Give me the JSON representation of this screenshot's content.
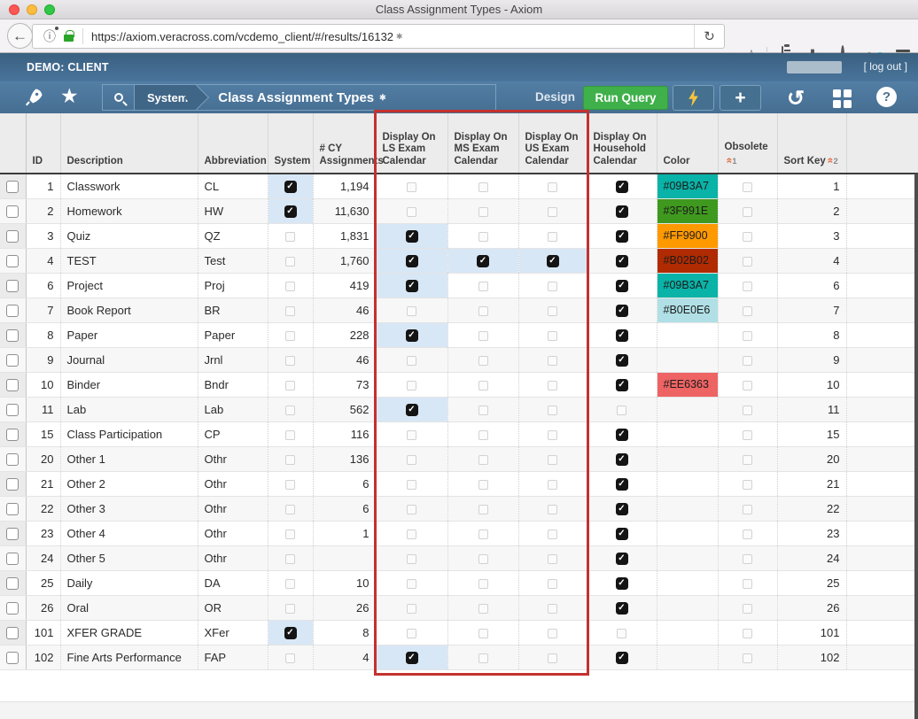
{
  "browser": {
    "window_title": "Class Assignment Types - Axiom",
    "url": "https://axiom.veracross.com/vcdemo_client/#/results/16132",
    "url_modified_marker": "✱"
  },
  "app_header": {
    "client_label": "DEMO: CLIENT",
    "logout_label": "[ log out ]",
    "breadcrumb_module": "System",
    "page_title": "Class Assignment Types",
    "title_modified_marker": "✱",
    "design_label": "Design",
    "run_query_label": "Run Query"
  },
  "colors": {
    "header_blue": "#47708f",
    "run_query_green": "#3fb04a",
    "annotation_red": "#c4312e",
    "checked_cell_highlight": "#d8e7f6",
    "bolt_yellow": "#f6c340"
  },
  "table": {
    "columns": [
      {
        "key": "id",
        "label": "ID"
      },
      {
        "key": "description",
        "label": "Description"
      },
      {
        "key": "abbreviation",
        "label": "Abbreviation"
      },
      {
        "key": "system",
        "label": "System",
        "type": "cb"
      },
      {
        "key": "cy",
        "label": "# CY Assignments"
      },
      {
        "key": "ls",
        "label": "Display On LS Exam Calendar",
        "type": "cb"
      },
      {
        "key": "ms",
        "label": "Display On MS Exam Calendar",
        "type": "cb"
      },
      {
        "key": "us",
        "label": "Display On US Exam Calendar",
        "type": "cb"
      },
      {
        "key": "household",
        "label": "Display On Household Calendar",
        "type": "cb"
      },
      {
        "key": "color",
        "label": "Color"
      },
      {
        "key": "obsolete",
        "label": "Obsolete",
        "type": "cb",
        "sort_badge": "1"
      },
      {
        "key": "sort",
        "label": "Sort Key",
        "sort_badge": "2"
      }
    ],
    "checkbox_legend": {
      "CH": "checked-highlighted",
      "C": "checked",
      "U": "unchecked"
    },
    "rows": [
      {
        "id": "1",
        "description": "Classwork",
        "abbreviation": "CL",
        "system": "CH",
        "cy": "1,194",
        "ls": "U",
        "ms": "U",
        "us": "U",
        "household": "C",
        "color": "#09B3A7",
        "obsolete": "U",
        "sort": "1"
      },
      {
        "id": "2",
        "description": "Homework",
        "abbreviation": "HW",
        "system": "CH",
        "cy": "11,630",
        "ls": "U",
        "ms": "U",
        "us": "U",
        "household": "C",
        "color": "#3F991E",
        "obsolete": "U",
        "sort": "2"
      },
      {
        "id": "3",
        "description": "Quiz",
        "abbreviation": "QZ",
        "system": "U",
        "cy": "1,831",
        "ls": "CH",
        "ms": "U",
        "us": "U",
        "household": "C",
        "color": "#FF9900",
        "obsolete": "U",
        "sort": "3"
      },
      {
        "id": "4",
        "description": "TEST",
        "abbreviation": "Test",
        "system": "U",
        "cy": "1,760",
        "ls": "CH",
        "ms": "CH",
        "us": "CH",
        "household": "C",
        "color": "#B02B02",
        "obsolete": "U",
        "sort": "4"
      },
      {
        "id": "6",
        "description": "Project",
        "abbreviation": "Proj",
        "system": "U",
        "cy": "419",
        "ls": "CH",
        "ms": "U",
        "us": "U",
        "household": "C",
        "color": "#09B3A7",
        "obsolete": "U",
        "sort": "6"
      },
      {
        "id": "7",
        "description": "Book Report",
        "abbreviation": "BR",
        "system": "U",
        "cy": "46",
        "ls": "U",
        "ms": "U",
        "us": "U",
        "household": "C",
        "color": "#B0E0E6",
        "obsolete": "U",
        "sort": "7"
      },
      {
        "id": "8",
        "description": "Paper",
        "abbreviation": "Paper",
        "system": "U",
        "cy": "228",
        "ls": "CH",
        "ms": "U",
        "us": "U",
        "household": "C",
        "color": null,
        "obsolete": "U",
        "sort": "8"
      },
      {
        "id": "9",
        "description": "Journal",
        "abbreviation": "Jrnl",
        "system": "U",
        "cy": "46",
        "ls": "U",
        "ms": "U",
        "us": "U",
        "household": "C",
        "color": null,
        "obsolete": "U",
        "sort": "9"
      },
      {
        "id": "10",
        "description": "Binder",
        "abbreviation": "Bndr",
        "system": "U",
        "cy": "73",
        "ls": "U",
        "ms": "U",
        "us": "U",
        "household": "C",
        "color": "#EE6363",
        "obsolete": "U",
        "sort": "10"
      },
      {
        "id": "11",
        "description": "Lab",
        "abbreviation": "Lab",
        "system": "U",
        "cy": "562",
        "ls": "CH",
        "ms": "U",
        "us": "U",
        "household": "U",
        "color": null,
        "obsolete": "U",
        "sort": "11"
      },
      {
        "id": "15",
        "description": "Class Participation",
        "abbreviation": "CP",
        "system": "U",
        "cy": "116",
        "ls": "U",
        "ms": "U",
        "us": "U",
        "household": "C",
        "color": null,
        "obsolete": "U",
        "sort": "15"
      },
      {
        "id": "20",
        "description": "Other 1",
        "abbreviation": "Othr",
        "system": "U",
        "cy": "136",
        "ls": "U",
        "ms": "U",
        "us": "U",
        "household": "C",
        "color": null,
        "obsolete": "U",
        "sort": "20"
      },
      {
        "id": "21",
        "description": "Other 2",
        "abbreviation": "Othr",
        "system": "U",
        "cy": "6",
        "ls": "U",
        "ms": "U",
        "us": "U",
        "household": "C",
        "color": null,
        "obsolete": "U",
        "sort": "21"
      },
      {
        "id": "22",
        "description": "Other 3",
        "abbreviation": "Othr",
        "system": "U",
        "cy": "6",
        "ls": "U",
        "ms": "U",
        "us": "U",
        "household": "C",
        "color": null,
        "obsolete": "U",
        "sort": "22"
      },
      {
        "id": "23",
        "description": "Other 4",
        "abbreviation": "Othr",
        "system": "U",
        "cy": "1",
        "ls": "U",
        "ms": "U",
        "us": "U",
        "household": "C",
        "color": null,
        "obsolete": "U",
        "sort": "23"
      },
      {
        "id": "24",
        "description": "Other 5",
        "abbreviation": "Othr",
        "system": "U",
        "cy": "",
        "ls": "U",
        "ms": "U",
        "us": "U",
        "household": "C",
        "color": null,
        "obsolete": "U",
        "sort": "24"
      },
      {
        "id": "25",
        "description": "Daily",
        "abbreviation": "DA",
        "system": "U",
        "cy": "10",
        "ls": "U",
        "ms": "U",
        "us": "U",
        "household": "C",
        "color": null,
        "obsolete": "U",
        "sort": "25"
      },
      {
        "id": "26",
        "description": "Oral",
        "abbreviation": "OR",
        "system": "U",
        "cy": "26",
        "ls": "U",
        "ms": "U",
        "us": "U",
        "household": "C",
        "color": null,
        "obsolete": "U",
        "sort": "26"
      },
      {
        "id": "101",
        "description": "XFER GRADE",
        "abbreviation": "XFer",
        "system": "CH",
        "cy": "8",
        "ls": "U",
        "ms": "U",
        "us": "U",
        "household": "U",
        "color": null,
        "obsolete": "U",
        "sort": "101"
      },
      {
        "id": "102",
        "description": "Fine Arts Performance",
        "abbreviation": "FAP",
        "system": "U",
        "cy": "4",
        "ls": "CH",
        "ms": "U",
        "us": "U",
        "household": "C",
        "color": null,
        "obsolete": "U",
        "sort": "102"
      }
    ]
  }
}
